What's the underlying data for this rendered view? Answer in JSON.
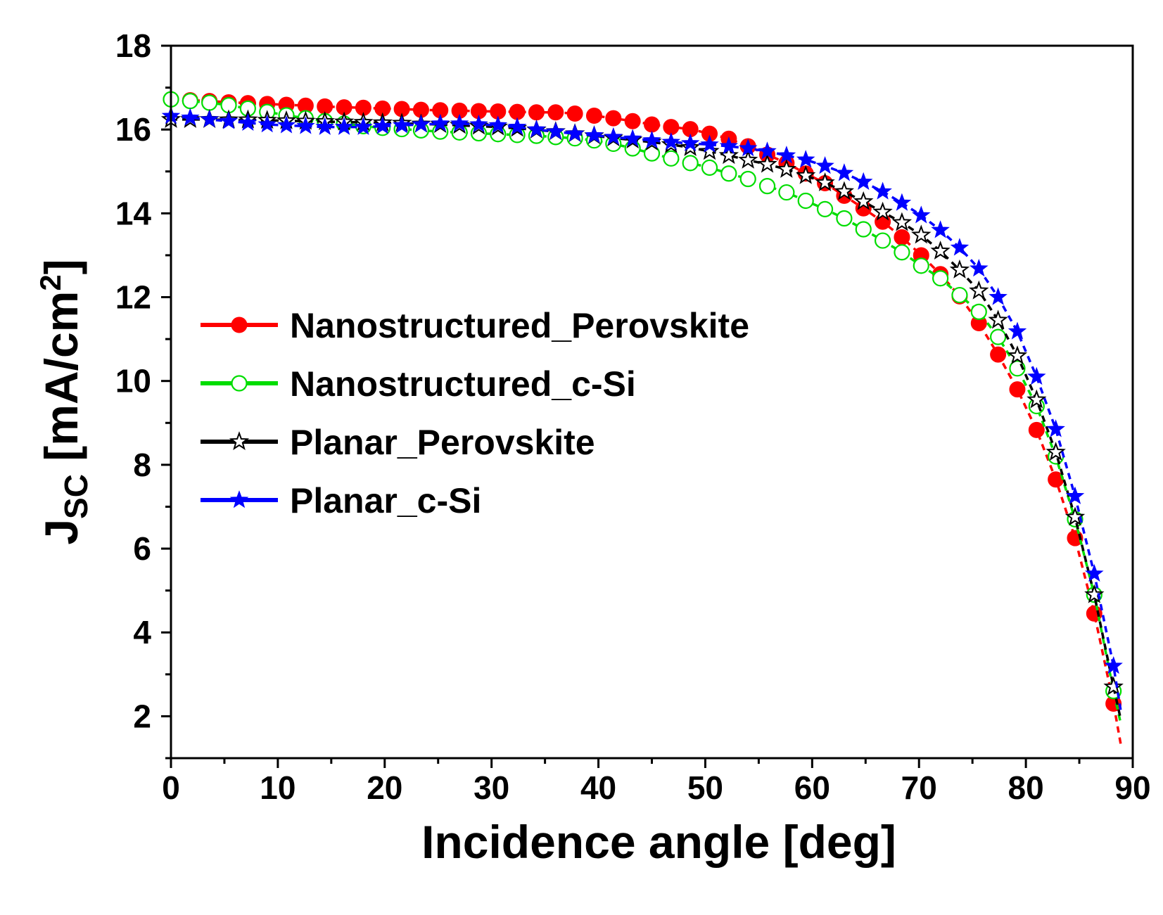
{
  "chart_data": {
    "type": "scatter",
    "title": "",
    "xlabel": "Incidence angle [deg]",
    "ylabel": {
      "main": "J",
      "subscript": "SC",
      "unit_prefix": " [mA/cm",
      "superscript": "2",
      "unit_suffix": "]"
    },
    "xlim": [
      0,
      90
    ],
    "ylim": [
      1,
      18
    ],
    "x_ticks": [
      0,
      10,
      20,
      30,
      40,
      50,
      60,
      70,
      80,
      90
    ],
    "x_tick_labels": [
      "0",
      "10",
      "20",
      "30",
      "40",
      "50",
      "60",
      "70",
      "80",
      "90"
    ],
    "y_ticks": [
      2,
      4,
      6,
      8,
      10,
      12,
      14,
      16,
      18
    ],
    "y_tick_labels": [
      "2",
      "4",
      "6",
      "8",
      "10",
      "12",
      "14",
      "16",
      "18"
    ],
    "grid": false,
    "legend_position": "center-left",
    "series": [
      {
        "name": "Nanostructured_Perovskite",
        "color": "#ff0000",
        "marker": "filled-circle",
        "x": [
          0,
          1.8,
          3.6,
          5.4,
          7.2,
          9,
          10.8,
          12.6,
          14.4,
          16.2,
          18,
          19.8,
          21.6,
          23.4,
          25.2,
          27,
          28.8,
          30.6,
          32.4,
          34.2,
          36,
          37.8,
          39.6,
          41.4,
          43.2,
          45,
          46.8,
          48.6,
          50.4,
          52.2,
          54,
          55.8,
          57.6,
          59.4,
          61.2,
          63,
          64.8,
          66.6,
          68.4,
          70.2,
          72,
          73.8,
          75.6,
          77.4,
          79.2,
          81,
          82.8,
          84.6,
          86.4,
          88.2,
          88.9
        ],
        "y": [
          16.72,
          16.7,
          16.68,
          16.65,
          16.63,
          16.61,
          16.59,
          16.57,
          16.55,
          16.53,
          16.52,
          16.5,
          16.49,
          16.47,
          16.46,
          16.45,
          16.44,
          16.43,
          16.42,
          16.41,
          16.41,
          16.38,
          16.33,
          16.27,
          16.2,
          16.12,
          16.06,
          16.01,
          15.9,
          15.78,
          15.6,
          15.4,
          15.2,
          14.95,
          14.72,
          14.42,
          14.12,
          13.8,
          13.43,
          13.0,
          12.55,
          12.02,
          11.38,
          10.63,
          9.8,
          8.83,
          7.65,
          6.25,
          4.45,
          2.3,
          1.3
        ]
      },
      {
        "name": "Nanostructured_c-Si",
        "color": "#00dd00",
        "marker": "open-circle",
        "x": [
          0,
          1.8,
          3.6,
          5.4,
          7.2,
          9,
          10.8,
          12.6,
          14.4,
          16.2,
          18,
          19.8,
          21.6,
          23.4,
          25.2,
          27,
          28.8,
          30.6,
          32.4,
          34.2,
          36,
          37.8,
          39.6,
          41.4,
          43.2,
          45,
          46.8,
          48.6,
          50.4,
          52.2,
          54,
          55.8,
          57.6,
          59.4,
          61.2,
          63,
          64.8,
          66.6,
          68.4,
          70.2,
          72,
          73.8,
          75.6,
          77.4,
          79.2,
          81,
          82.8,
          84.6,
          86.4,
          88.2,
          88.9
        ],
        "y": [
          16.72,
          16.68,
          16.64,
          16.58,
          16.5,
          16.42,
          16.34,
          16.27,
          16.2,
          16.14,
          16.08,
          16.04,
          16.01,
          15.98,
          15.95,
          15.93,
          15.91,
          15.89,
          15.87,
          15.85,
          15.82,
          15.79,
          15.74,
          15.66,
          15.55,
          15.43,
          15.31,
          15.2,
          15.09,
          14.95,
          14.82,
          14.65,
          14.5,
          14.3,
          14.1,
          13.88,
          13.62,
          13.35,
          13.07,
          12.75,
          12.45,
          12.05,
          11.65,
          11.05,
          10.3,
          9.4,
          8.2,
          6.7,
          4.9,
          2.6,
          1.8
        ]
      },
      {
        "name": "Planar_Perovskite",
        "color": "#000000",
        "marker": "open-star",
        "x": [
          0,
          1.8,
          3.6,
          5.4,
          7.2,
          9,
          10.8,
          12.6,
          14.4,
          16.2,
          18,
          19.8,
          21.6,
          23.4,
          25.2,
          27,
          28.8,
          30.6,
          32.4,
          34.2,
          36,
          37.8,
          39.6,
          41.4,
          43.2,
          45,
          46.8,
          48.6,
          50.4,
          52.2,
          54,
          55.8,
          57.6,
          59.4,
          61.2,
          63,
          64.8,
          66.6,
          68.4,
          70.2,
          72,
          73.8,
          75.6,
          77.4,
          79.2,
          81,
          82.8,
          84.6,
          86.4,
          88.2,
          88.9
        ],
        "y": [
          16.24,
          16.24,
          16.24,
          16.23,
          16.23,
          16.22,
          16.21,
          16.2,
          16.19,
          16.18,
          16.17,
          16.16,
          16.15,
          16.13,
          16.12,
          16.1,
          16.08,
          16.06,
          16.03,
          15.99,
          15.95,
          15.9,
          15.85,
          15.8,
          15.75,
          15.7,
          15.64,
          15.57,
          15.48,
          15.38,
          15.27,
          15.17,
          15.05,
          14.9,
          14.73,
          14.52,
          14.28,
          14.03,
          13.78,
          13.48,
          13.1,
          12.65,
          12.15,
          11.45,
          10.6,
          9.55,
          8.3,
          6.75,
          4.9,
          2.7,
          1.9
        ]
      },
      {
        "name": "Planar_c-Si",
        "color": "#0000ff",
        "marker": "filled-star",
        "x": [
          0,
          1.8,
          3.6,
          5.4,
          7.2,
          9,
          10.8,
          12.6,
          14.4,
          16.2,
          18,
          19.8,
          21.6,
          23.4,
          25.2,
          27,
          28.8,
          30.6,
          32.4,
          34.2,
          36,
          37.8,
          39.6,
          41.4,
          43.2,
          45,
          46.8,
          48.6,
          50.4,
          52.2,
          54,
          55.8,
          57.6,
          59.4,
          61.2,
          63,
          64.8,
          66.6,
          68.4,
          70.2,
          72,
          73.8,
          75.6,
          77.4,
          79.2,
          81,
          82.8,
          84.6,
          86.4,
          88.2,
          88.9
        ],
        "y": [
          16.32,
          16.28,
          16.24,
          16.2,
          16.16,
          16.12,
          16.1,
          16.08,
          16.06,
          16.06,
          16.06,
          16.08,
          16.1,
          16.12,
          16.14,
          16.14,
          16.12,
          16.1,
          16.06,
          16.0,
          15.95,
          15.9,
          15.86,
          15.82,
          15.78,
          15.74,
          15.7,
          15.67,
          15.64,
          15.6,
          15.55,
          15.48,
          15.38,
          15.28,
          15.13,
          14.96,
          14.75,
          14.52,
          14.25,
          13.95,
          13.6,
          13.18,
          12.68,
          12.0,
          11.18,
          10.1,
          8.85,
          7.25,
          5.4,
          3.2,
          2.1
        ]
      }
    ]
  }
}
